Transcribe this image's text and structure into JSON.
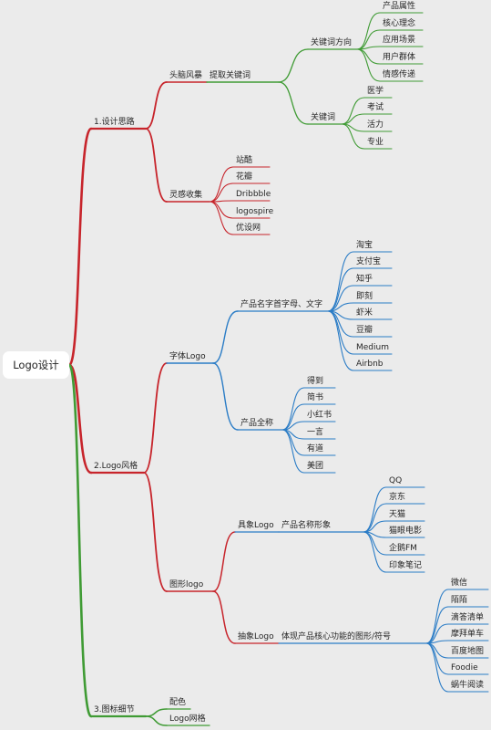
{
  "root": "Logo设计",
  "colors": {
    "red": "#c7242b",
    "green": "#3f9b34",
    "blue": "#2a7cc6",
    "background": "#ebebeb"
  },
  "branches": [
    {
      "label": "1.设计思路",
      "color": "red",
      "children": [
        {
          "label": "头脑风暴",
          "color": "red",
          "children": [
            {
              "label": "提取关键词",
              "color": "green",
              "children": [
                {
                  "label": "关键词方向",
                  "color": "green",
                  "children": [
                    "产品属性",
                    "核心理念",
                    "应用场景",
                    "用户群体",
                    "情感传递"
                  ]
                },
                {
                  "label": "关键词",
                  "color": "green",
                  "children": [
                    "医学",
                    "考试",
                    "活力",
                    "专业"
                  ]
                }
              ]
            }
          ]
        },
        {
          "label": "灵感收集",
          "color": "red",
          "children": [
            "站酷",
            "花瓣",
            "Dribbble",
            "logospire",
            "优设网"
          ]
        }
      ]
    },
    {
      "label": "2.Logo风格",
      "color": "red",
      "children": [
        {
          "label": "字体Logo",
          "color": "blue",
          "children": [
            {
              "label": "产品名字首字母、文字",
              "color": "blue",
              "children": [
                "淘宝",
                "支付宝",
                "知乎",
                "即刻",
                "虾米",
                "豆瓣",
                "Medium",
                "Airbnb"
              ]
            },
            {
              "label": "产品全称",
              "color": "blue",
              "children": [
                "得到",
                "简书",
                "小红书",
                "一言",
                "有道",
                "美团"
              ]
            }
          ]
        },
        {
          "label": "图形logo",
          "color": "red",
          "children": [
            {
              "label": "具象Logo",
              "color": "blue",
              "children": [
                {
                  "label": "产品名称形象",
                  "color": "blue",
                  "children": [
                    "QQ",
                    "京东",
                    "天猫",
                    "猫眼电影",
                    "企鹅FM",
                    "印象笔记"
                  ]
                }
              ]
            },
            {
              "label": "抽象Logo",
              "color": "blue",
              "children": [
                {
                  "label": "体现产品核心功能的图形/符号",
                  "color": "blue",
                  "children": [
                    "微信",
                    "陌陌",
                    "滴答清单",
                    "摩拜单车",
                    "百度地图",
                    "Foodie",
                    "蜗牛阅读"
                  ]
                }
              ]
            }
          ]
        }
      ]
    },
    {
      "label": "3.图标细节",
      "color": "green",
      "children": [
        "配色",
        "Logo网格"
      ]
    }
  ]
}
